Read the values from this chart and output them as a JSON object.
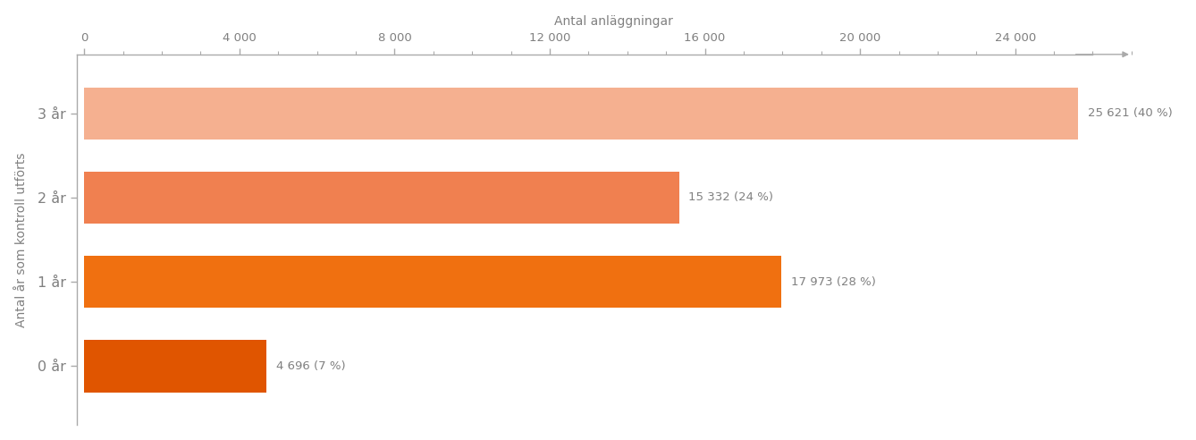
{
  "categories": [
    "0 år",
    "1 år",
    "2 år",
    "3 år"
  ],
  "values": [
    4696,
    17973,
    15332,
    25621
  ],
  "labels": [
    "4 696 (7 %)",
    "17 973 (28 %)",
    "15 332 (24 %)",
    "25 621 (40 %)"
  ],
  "bar_colors": [
    "#e05500",
    "#f07010",
    "#f08050",
    "#f5b090"
  ],
  "xlabel": "Antal anläggningar",
  "ylabel": "Antal år som kontroll utförts",
  "xticks": [
    0,
    4000,
    8000,
    12000,
    16000,
    20000,
    24000
  ],
  "xtick_labels": [
    "0",
    "4 000",
    "8 000",
    "12 000",
    "16 000",
    "20 000",
    "24 000"
  ],
  "background_color": "#ffffff",
  "text_color": "#808080",
  "axis_color": "#aaaaaa",
  "bar_height": 0.62,
  "label_fontsize": 9.5,
  "xlabel_fontsize": 10,
  "ylabel_fontsize": 10,
  "tick_fontsize": 9.5
}
